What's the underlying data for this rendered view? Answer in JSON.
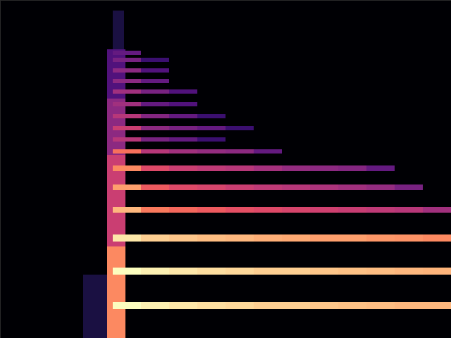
{
  "chart_data": {
    "type": "spectrogram",
    "tick_labels": false,
    "grid": false,
    "xlim": [
      0,
      640
    ],
    "ylim": [
      0,
      480
    ],
    "color_range": [
      0,
      1
    ],
    "x_bins": [
      160,
      200,
      240,
      280,
      320,
      360,
      400,
      440,
      480,
      520,
      560,
      600,
      640
    ],
    "onset": [
      {
        "x": [
          118,
          152
        ],
        "y": [
          0,
          90
        ],
        "value": 0.12
      },
      {
        "x": [
          152,
          178
        ],
        "y": [
          0,
          130
        ],
        "value": 0.75
      },
      {
        "x": [
          152,
          178
        ],
        "y": [
          130,
          260
        ],
        "value": 0.55
      },
      {
        "x": [
          152,
          178
        ],
        "y": [
          260,
          340
        ],
        "value": 0.4
      },
      {
        "x": [
          152,
          178
        ],
        "y": [
          340,
          410
        ],
        "value": 0.25
      },
      {
        "x": [
          160,
          176
        ],
        "y": [
          410,
          465
        ],
        "value": 0.12
      }
    ],
    "rows": [
      {
        "y": [
          41,
          51
        ],
        "values": [
          1,
          0.97,
          0.95,
          0.93,
          0.92,
          0.9,
          0.9,
          0.88,
          0.87,
          0.86,
          0.85,
          0.85
        ]
      },
      {
        "y": [
          90,
          100
        ],
        "values": [
          1,
          0.97,
          0.95,
          0.93,
          0.92,
          0.9,
          0.9,
          0.88,
          0.87,
          0.86,
          0.85,
          0.84
        ]
      },
      {
        "y": [
          137,
          147
        ],
        "values": [
          0.95,
          0.9,
          0.88,
          0.86,
          0.85,
          0.83,
          0.82,
          0.8,
          0.8,
          0.78,
          0.77,
          0.75
        ]
      },
      {
        "y": [
          178,
          186
        ],
        "values": [
          0.85,
          0.72,
          0.68,
          0.65,
          0.62,
          0.6,
          0.58,
          0.56,
          0.54,
          0.52,
          0.5,
          0.45
        ]
      },
      {
        "y": [
          210,
          218
        ],
        "values": [
          0.8,
          0.65,
          0.6,
          0.58,
          0.55,
          0.52,
          0.5,
          0.48,
          0.45,
          0.42,
          0.35,
          0
        ]
      },
      {
        "y": [
          237,
          245
        ],
        "values": [
          0.75,
          0.6,
          0.55,
          0.52,
          0.5,
          0.46,
          0.42,
          0.4,
          0.38,
          0.3,
          0,
          0
        ]
      },
      {
        "y": [
          262,
          268
        ],
        "values": [
          0.7,
          0.5,
          0.45,
          0.42,
          0.4,
          0.3,
          0,
          0,
          0,
          0,
          0,
          0
        ]
      },
      {
        "y": [
          279,
          285
        ],
        "values": [
          0.5,
          0.35,
          0.3,
          0.2,
          0,
          0,
          0,
          0,
          0,
          0,
          0,
          0
        ]
      },
      {
        "y": [
          295,
          301
        ],
        "values": [
          0.55,
          0.4,
          0.35,
          0.3,
          0.2,
          0,
          0,
          0,
          0,
          0,
          0,
          0
        ]
      },
      {
        "y": [
          312,
          318
        ],
        "values": [
          0.5,
          0.38,
          0.3,
          0.2,
          0,
          0,
          0,
          0,
          0,
          0,
          0,
          0
        ]
      },
      {
        "y": [
          329,
          335
        ],
        "values": [
          0.45,
          0.3,
          0.25,
          0,
          0,
          0,
          0,
          0,
          0,
          0,
          0,
          0
        ]
      },
      {
        "y": [
          347,
          353
        ],
        "values": [
          0.45,
          0.35,
          0.25,
          0,
          0,
          0,
          0,
          0,
          0,
          0,
          0,
          0
        ]
      },
      {
        "y": [
          362,
          368
        ],
        "values": [
          0.4,
          0.3,
          0,
          0,
          0,
          0,
          0,
          0,
          0,
          0,
          0,
          0
        ]
      },
      {
        "y": [
          377,
          383
        ],
        "values": [
          0.4,
          0.25,
          0,
          0,
          0,
          0,
          0,
          0,
          0,
          0,
          0,
          0
        ]
      },
      {
        "y": [
          392,
          398
        ],
        "values": [
          0.35,
          0.2,
          0,
          0,
          0,
          0,
          0,
          0,
          0,
          0,
          0,
          0
        ]
      },
      {
        "y": [
          402,
          408
        ],
        "values": [
          0.3,
          0,
          0,
          0,
          0,
          0,
          0,
          0,
          0,
          0,
          0,
          0
        ]
      }
    ]
  }
}
